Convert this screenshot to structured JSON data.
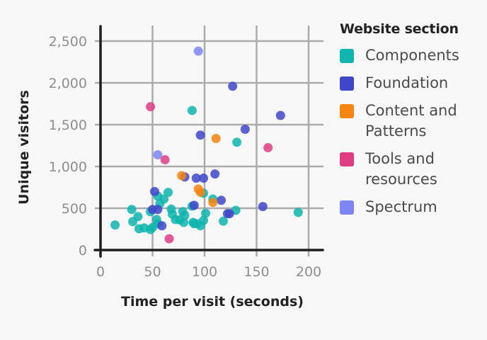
{
  "chart_data": {
    "type": "scatter",
    "title": "",
    "xlabel": "Time per visit (seconds)",
    "ylabel": "Unique visitors",
    "xlim": [
      0,
      215
    ],
    "ylim": [
      0,
      2700
    ],
    "x_ticks": [
      0,
      50,
      100,
      150,
      200
    ],
    "x_tick_labels": [
      "0",
      "50",
      "100",
      "150",
      "200"
    ],
    "y_ticks": [
      0,
      500,
      1000,
      1500,
      2000,
      2500
    ],
    "y_tick_labels": [
      "0",
      "500",
      "1,000",
      "1,500",
      "2,000",
      "2,500"
    ],
    "grid": true,
    "legend_position": "right",
    "legend_title": "Website section",
    "series": [
      {
        "name": "Components",
        "color": "#0FB5AE",
        "points": [
          [
            14,
            300
          ],
          [
            30,
            485
          ],
          [
            36,
            400
          ],
          [
            31,
            340
          ],
          [
            37,
            255
          ],
          [
            55,
            645
          ],
          [
            65,
            690
          ],
          [
            61,
            610
          ],
          [
            57,
            555
          ],
          [
            48,
            460
          ],
          [
            54,
            365
          ],
          [
            55,
            315
          ],
          [
            50,
            270
          ],
          [
            48,
            245
          ],
          [
            42,
            265
          ],
          [
            68,
            490
          ],
          [
            69,
            430
          ],
          [
            72,
            365
          ],
          [
            76,
            360
          ],
          [
            79,
            460
          ],
          [
            81,
            415
          ],
          [
            80,
            330
          ],
          [
            88,
            1670
          ],
          [
            131,
            1290
          ],
          [
            99,
            680
          ],
          [
            108,
            610
          ],
          [
            88,
            525
          ],
          [
            101,
            440
          ],
          [
            89,
            330
          ],
          [
            93,
            315
          ],
          [
            96,
            290
          ],
          [
            99,
            355
          ],
          [
            130,
            475
          ],
          [
            118,
            345
          ],
          [
            190,
            450
          ],
          [
            90,
            315
          ]
        ]
      },
      {
        "name": "Foundation",
        "color": "#4046CA",
        "points": [
          [
            127,
            1960
          ],
          [
            173,
            1610
          ],
          [
            139,
            1445
          ],
          [
            96,
            1375
          ],
          [
            52,
            700
          ],
          [
            50,
            485
          ],
          [
            55,
            485
          ],
          [
            59,
            290
          ],
          [
            81,
            875
          ],
          [
            92,
            860
          ],
          [
            99,
            860
          ],
          [
            110,
            910
          ],
          [
            116,
            595
          ],
          [
            90,
            535
          ],
          [
            124,
            435
          ],
          [
            122,
            435
          ],
          [
            156,
            520
          ]
        ]
      },
      {
        "name": "Content and Patterns",
        "color": "#F68511",
        "points": [
          [
            111,
            1335
          ],
          [
            78,
            890
          ],
          [
            94,
            730
          ],
          [
            96,
            690
          ],
          [
            108,
            570
          ]
        ]
      },
      {
        "name": "Tools and resources",
        "color": "#DE3D82",
        "points": [
          [
            48,
            1715
          ],
          [
            161,
            1225
          ],
          [
            62,
            1080
          ],
          [
            66,
            135
          ]
        ]
      },
      {
        "name": "Spectrum",
        "color": "#7E84FA",
        "points": [
          [
            94,
            2380
          ],
          [
            55,
            1140
          ]
        ]
      }
    ]
  },
  "legend": {
    "title": "Website section",
    "items": [
      {
        "label_line1": "Components",
        "label_line2": "",
        "color": "#0FB5AE"
      },
      {
        "label_line1": "Foundation",
        "label_line2": "",
        "color": "#4046CA"
      },
      {
        "label_line1": "Content and",
        "label_line2": "Patterns",
        "color": "#F68511"
      },
      {
        "label_line1": "Tools and",
        "label_line2": "resources",
        "color": "#DE3D82"
      },
      {
        "label_line1": "Spectrum",
        "label_line2": "",
        "color": "#7E84FA"
      }
    ]
  }
}
